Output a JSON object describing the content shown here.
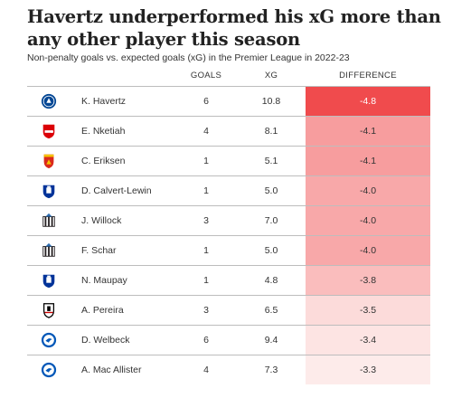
{
  "header": {
    "title": "Havertz underperformed his xG more than any other player this season",
    "subtitle": "Non-penalty goals vs. expected goals (xG) in the Premier League in 2022-23"
  },
  "columns": {
    "goals": "GOALS",
    "xg": "XG",
    "difference": "DIFFERENCE"
  },
  "chart_data": {
    "type": "table",
    "title": "Havertz underperformed his xG more than any other player this season",
    "subtitle": "Non-penalty goals vs. expected goals (xG) in the Premier League in 2022-23",
    "columns": [
      "GOALS",
      "XG",
      "DIFFERENCE"
    ],
    "rows": [
      {
        "crest": "chelsea-crest",
        "name": "K. Havertz",
        "goals": "6",
        "xg": "10.8",
        "difference": "-4.8",
        "diff_value": -4.8
      },
      {
        "crest": "arsenal-crest",
        "name": "E. Nketiah",
        "goals": "4",
        "xg": "8.1",
        "difference": "-4.1",
        "diff_value": -4.1
      },
      {
        "crest": "man-united-crest",
        "name": "C. Eriksen",
        "goals": "1",
        "xg": "5.1",
        "difference": "-4.1",
        "diff_value": -4.1
      },
      {
        "crest": "everton-crest",
        "name": "D. Calvert-Lewin",
        "goals": "1",
        "xg": "5.0",
        "difference": "-4.0",
        "diff_value": -4.0
      },
      {
        "crest": "newcastle-crest",
        "name": "J. Willock",
        "goals": "3",
        "xg": "7.0",
        "difference": "-4.0",
        "diff_value": -4.0
      },
      {
        "crest": "newcastle-crest",
        "name": "F. Schar",
        "goals": "1",
        "xg": "5.0",
        "difference": "-4.0",
        "diff_value": -4.0
      },
      {
        "crest": "everton-crest",
        "name": "N. Maupay",
        "goals": "1",
        "xg": "4.8",
        "difference": "-3.8",
        "diff_value": -3.8
      },
      {
        "crest": "fulham-crest",
        "name": "A. Pereira",
        "goals": "3",
        "xg": "6.5",
        "difference": "-3.5",
        "diff_value": -3.5
      },
      {
        "crest": "brighton-crest",
        "name": "D. Welbeck",
        "goals": "6",
        "xg": "9.4",
        "difference": "-3.4",
        "diff_value": -3.4
      },
      {
        "crest": "brighton-crest",
        "name": "A. Mac Allister",
        "goals": "4",
        "xg": "7.3",
        "difference": "-3.3",
        "diff_value": -3.3
      }
    ],
    "color_scale": {
      "strongest": "#f04b4d",
      "weakest": "#fef3f2"
    }
  },
  "colors": {
    "chelsea": "#034694",
    "arsenal": "#db0007",
    "man_united": "#da291c",
    "everton": "#003399",
    "newcastle": "#241f20",
    "fulham": "#000000",
    "brighton": "#0057b8"
  }
}
